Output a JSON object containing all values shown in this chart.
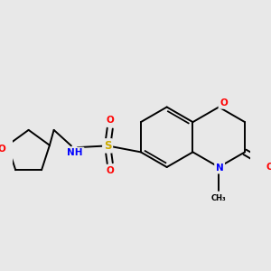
{
  "background_color": "#e8e8e8",
  "bond_color": "#000000",
  "atom_colors": {
    "O": "#ff0000",
    "N": "#0000ff",
    "S": "#ccaa00",
    "C": "#000000"
  },
  "lw": 1.4,
  "fontsize": 7.5
}
